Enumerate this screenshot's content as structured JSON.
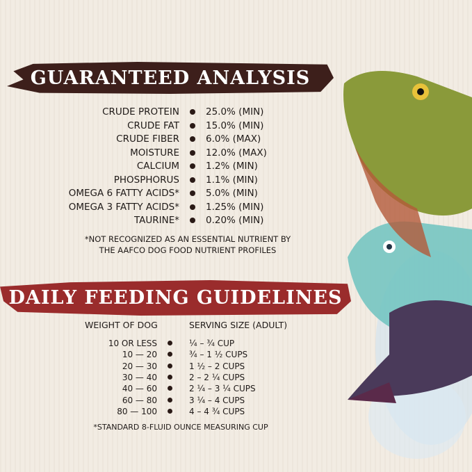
{
  "analysis": {
    "title": "GUARANTEED ANALYSIS",
    "rows": [
      {
        "label": "CRUDE PROTEIN",
        "value": "25.0% (MIN)"
      },
      {
        "label": "CRUDE FAT",
        "value": "15.0% (MIN)"
      },
      {
        "label": "CRUDE FIBER",
        "value": "6.0% (MAX)"
      },
      {
        "label": "MOISTURE",
        "value": "12.0% (MAX)"
      },
      {
        "label": "CALCIUM",
        "value": "1.2% (MIN)"
      },
      {
        "label": "PHOSPHORUS",
        "value": "1.1% (MIN)"
      },
      {
        "label": "OMEGA 6 FATTY ACIDS*",
        "value": "5.0% (MIN)"
      },
      {
        "label": "OMEGA 3 FATTY ACIDS*",
        "value": "1.25% (MIN)"
      },
      {
        "label": "TAURINE*",
        "value": "0.20% (MIN)"
      }
    ],
    "note_line1": "*NOT RECOGNIZED AS AN ESSENTIAL NUTRIENT BY",
    "note_line2": "THE AAFCO DOG FOOD NUTRIENT PROFILES"
  },
  "feeding": {
    "title": "DAILY FEEDING GUIDELINES",
    "col_weight": "WEIGHT OF DOG",
    "col_serving": "SERVING SIZE (ADULT)",
    "rows": [
      {
        "weight": "10 OR LESS",
        "serving": "¼ – ¾ CUP"
      },
      {
        "weight": "10 — 20",
        "serving": "¾ – 1 ½ CUPS"
      },
      {
        "weight": "20 — 30",
        "serving": "1 ½ – 2 CUPS"
      },
      {
        "weight": "30 — 40",
        "serving": "2 – 2 ¼ CUPS"
      },
      {
        "weight": "40 — 60",
        "serving": "2 ¼ – 3 ¼ CUPS"
      },
      {
        "weight": "60 — 80",
        "serving": "3 ¼ – 4 CUPS"
      },
      {
        "weight": "80 — 100",
        "serving": "4 – 4 ¾ CUPS"
      }
    ],
    "note": "*STANDARD 8-FLUID OUNCE MEASURING CUP"
  },
  "colors": {
    "brown_banner": "#3d1f1b",
    "red_banner": "#9a2c2c",
    "background": "#f2ece3"
  },
  "illustration": "watercolor-fish"
}
